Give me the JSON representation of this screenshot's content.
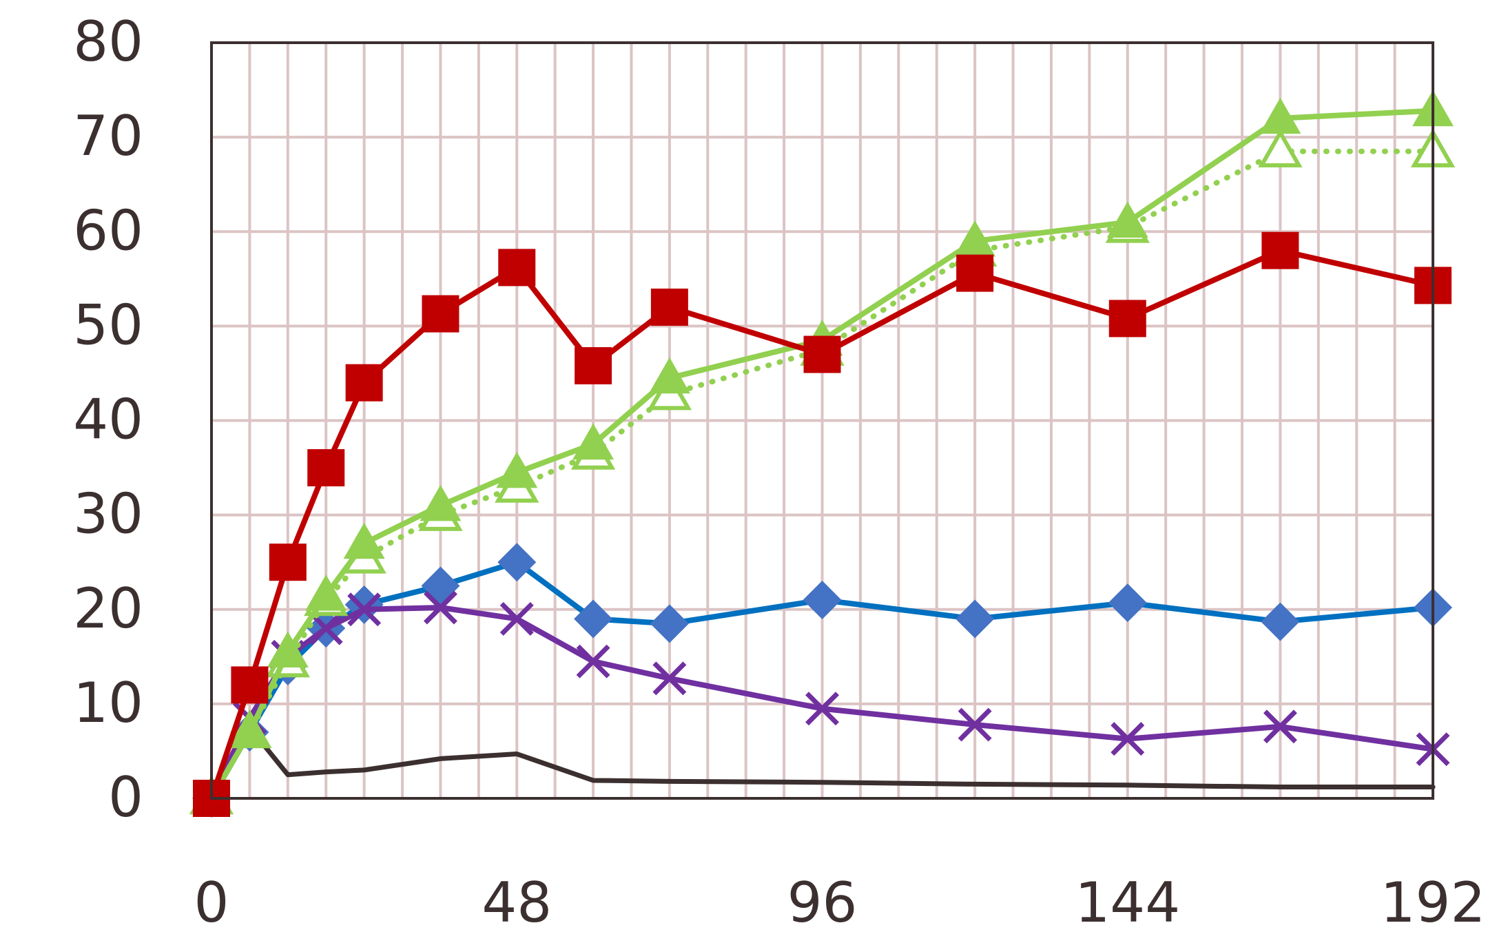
{
  "chart_data": {
    "type": "line",
    "title": "",
    "xlabel": "",
    "ylabel": "",
    "xlim": [
      0,
      192
    ],
    "ylim": [
      0,
      80
    ],
    "x_ticks": [
      "0",
      "48",
      "96",
      "144",
      "192"
    ],
    "y_ticks": [
      "0",
      "10",
      "20",
      "30",
      "40",
      "50",
      "60",
      "70",
      "80"
    ],
    "grid": true,
    "legend": "none",
    "colors": {
      "grid": "#dcc4c4",
      "frame": "#3b2f2f",
      "text": "#3b2f2f",
      "red": "#c00000",
      "green": "#92d050",
      "blue": "#4472c4",
      "blue_line": "#0070c0",
      "purple": "#7030a0",
      "black": "#3b2f2f"
    },
    "series": [
      {
        "marker": "square",
        "color": "#c00000",
        "line": "solid",
        "x": [
          0,
          6,
          12,
          18,
          24,
          36,
          48,
          60,
          72,
          96,
          120,
          144,
          168,
          192
        ],
        "y": [
          0,
          12,
          25,
          35,
          44,
          51.3,
          56.2,
          45.8,
          52,
          47,
          55.6,
          50.8,
          58,
          54.3
        ]
      },
      {
        "marker": "triangle",
        "color": "#92d050",
        "line": "solid",
        "x": [
          0,
          6,
          12,
          18,
          24,
          36,
          48,
          60,
          72,
          96,
          120,
          144,
          168,
          192
        ],
        "y": [
          0,
          7,
          15.5,
          21.5,
          27,
          31,
          34.5,
          37.5,
          44.5,
          48.5,
          59,
          61,
          72,
          72.8
        ]
      },
      {
        "marker": "triangle-open",
        "color": "#92d050",
        "line": "dotted",
        "x": [
          0,
          6,
          12,
          18,
          24,
          36,
          48,
          60,
          72,
          96,
          120,
          144,
          168,
          192
        ],
        "y": [
          0,
          7,
          14.5,
          21,
          25.5,
          30,
          33,
          36.5,
          42.8,
          47.5,
          58,
          60.5,
          68.5,
          68.5
        ]
      },
      {
        "marker": "diamond",
        "color": "#4472c4",
        "line": "solid",
        "x": [
          0,
          6,
          12,
          18,
          24,
          36,
          48,
          60,
          72,
          96,
          120,
          144,
          168,
          192
        ],
        "y": [
          0,
          7,
          14,
          18,
          20.5,
          22.5,
          25,
          19,
          18.5,
          21,
          19,
          20.7,
          18.7,
          20.2
        ]
      },
      {
        "marker": "x",
        "color": "#7030a0",
        "line": "solid",
        "x": [
          0,
          6,
          12,
          18,
          24,
          36,
          48,
          60,
          72,
          96,
          120,
          144,
          168,
          192
        ],
        "y": [
          0,
          8.5,
          15,
          18,
          20,
          20.2,
          19,
          14.5,
          12.7,
          9.5,
          7.8,
          6.3,
          7.6,
          5.2
        ]
      },
      {
        "marker": "none",
        "color": "#3b2f2f",
        "line": "solid",
        "x": [
          0,
          6,
          12,
          18,
          24,
          36,
          48,
          60,
          72,
          96,
          120,
          144,
          168,
          192
        ],
        "y": [
          0,
          7.5,
          2.5,
          2.8,
          3,
          4.2,
          4.7,
          1.9,
          1.8,
          1.7,
          1.5,
          1.4,
          1.2,
          1.2
        ]
      }
    ]
  }
}
